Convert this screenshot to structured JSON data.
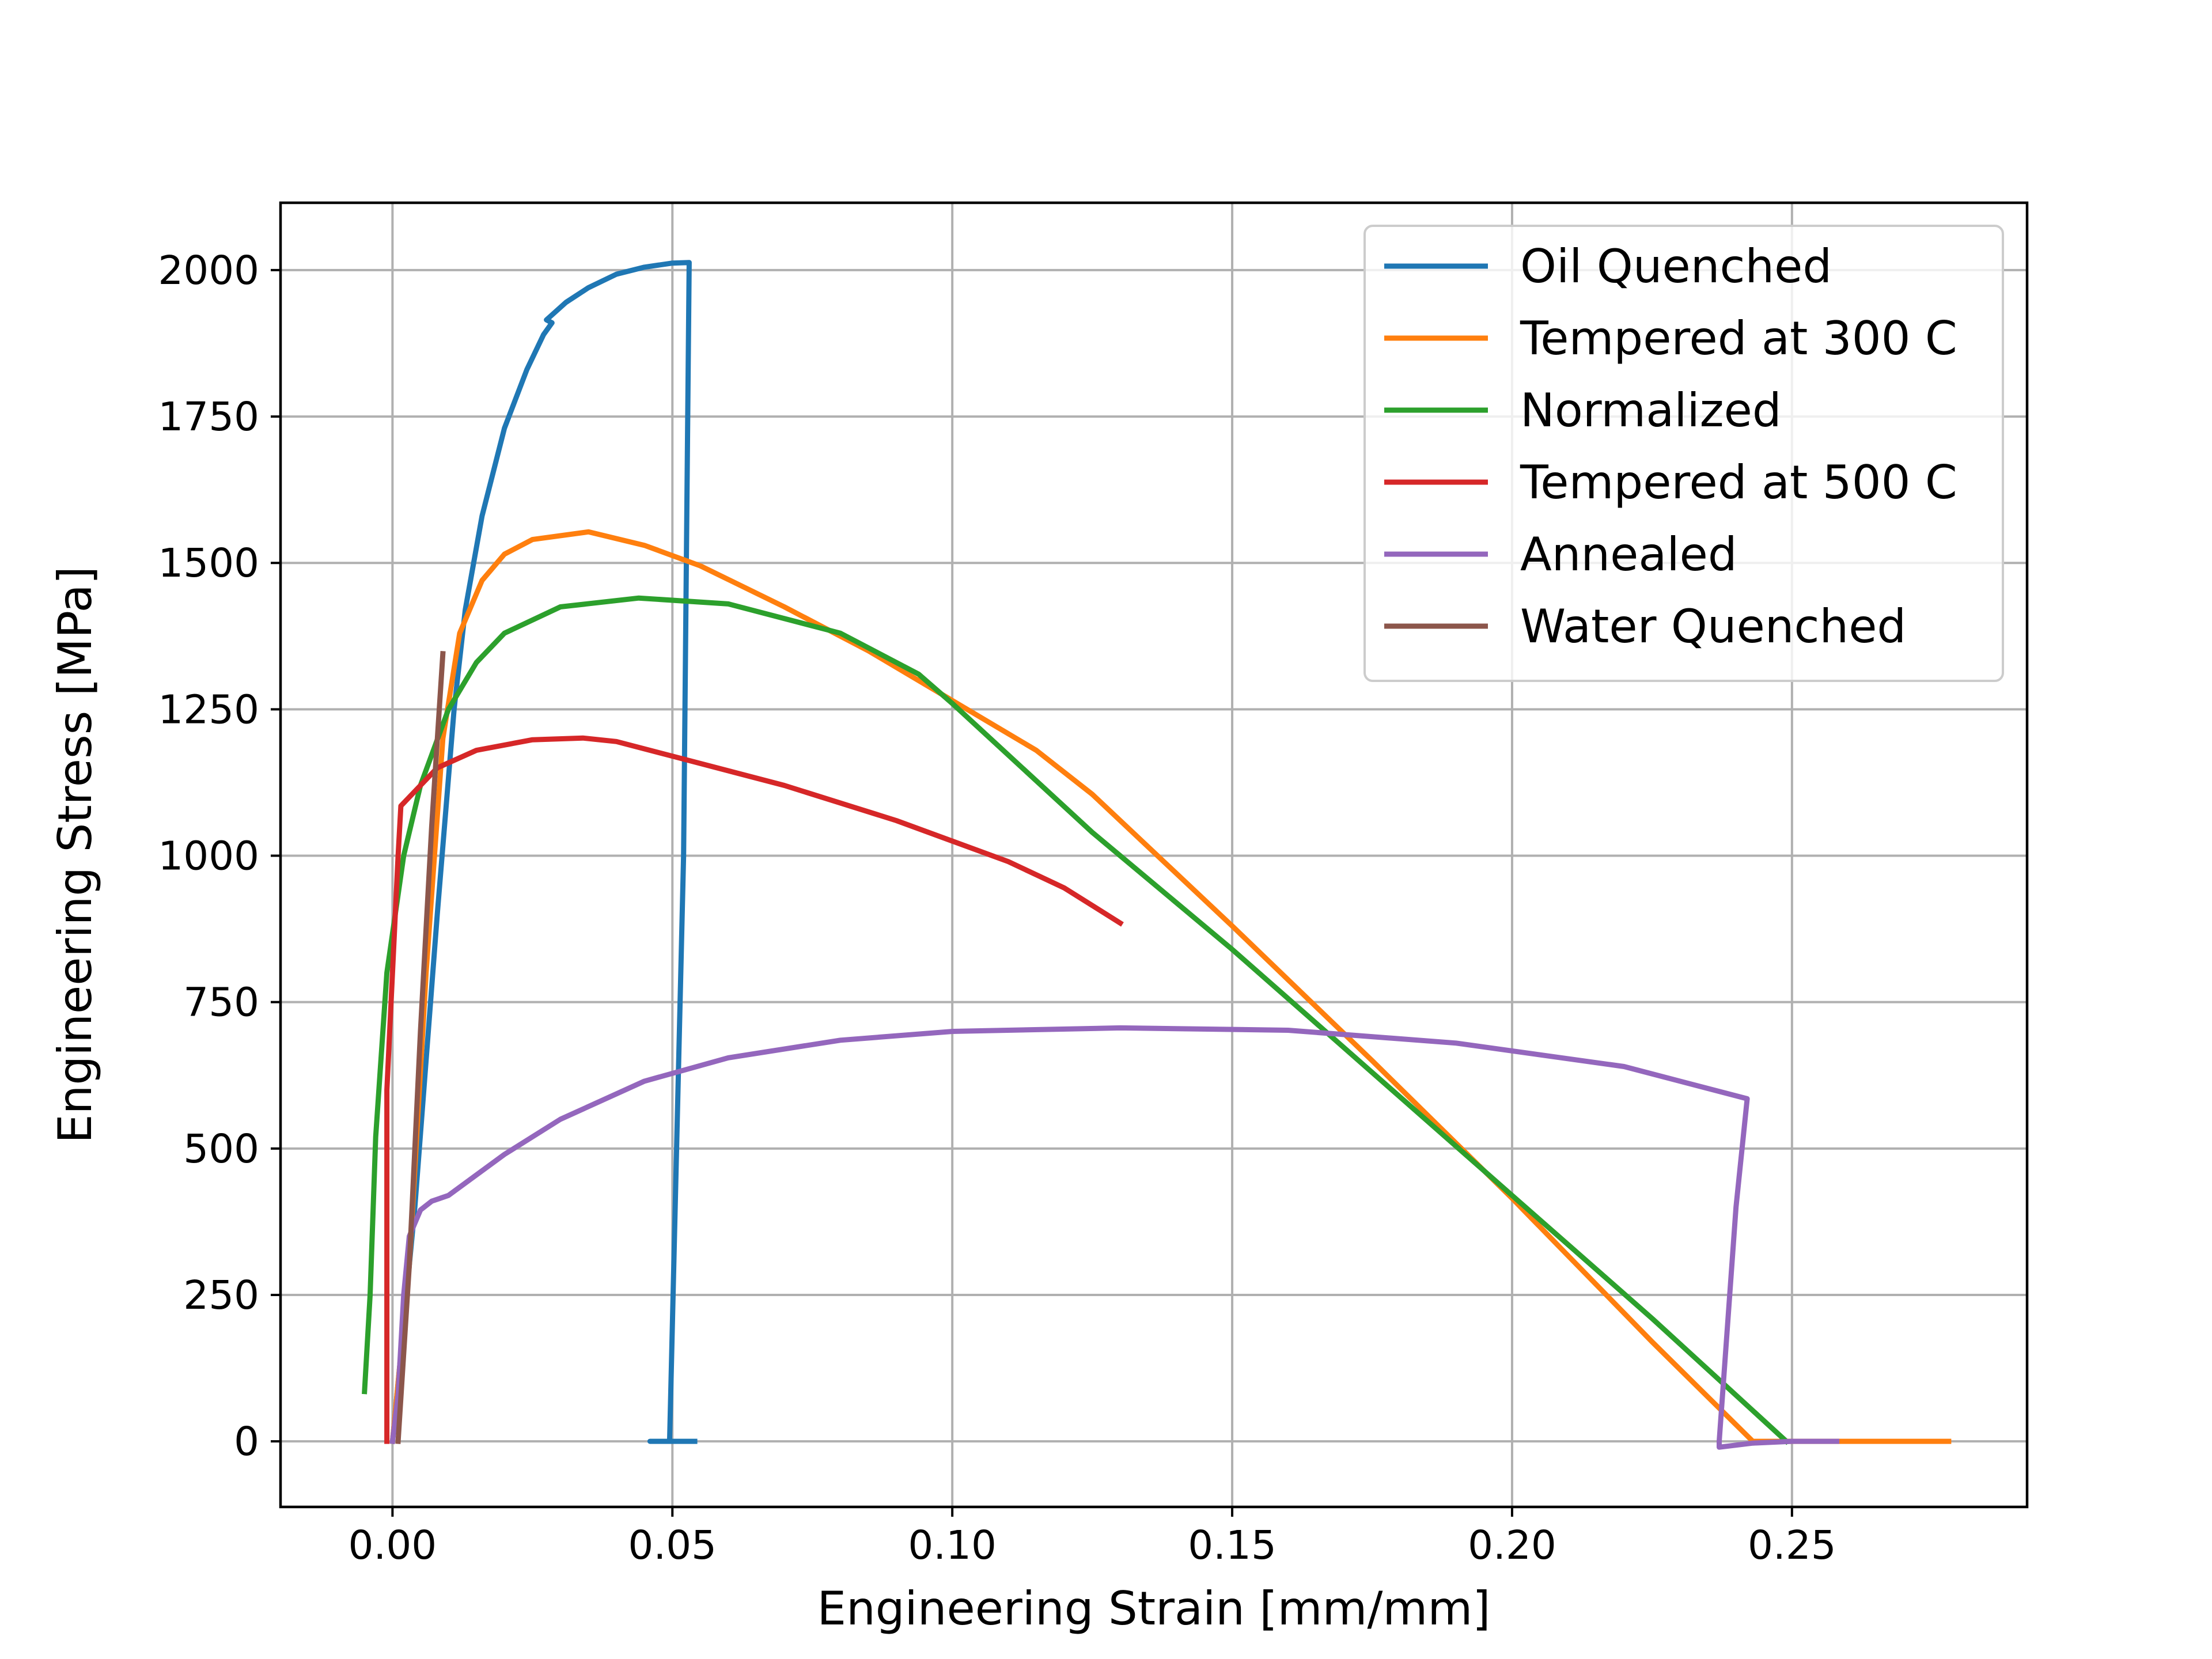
{
  "chart_data": {
    "type": "line",
    "title": "",
    "xlabel": "Engineering Strain   [mm/mm]",
    "ylabel": "Engineering Stress   [MPa]",
    "xlim": [
      -0.02,
      0.292
    ],
    "ylim": [
      -112,
      2115
    ],
    "grid": true,
    "legend_position": "top-right",
    "x_ticks": [
      {
        "value": 0.0,
        "label": "0.00"
      },
      {
        "value": 0.05,
        "label": "0.05"
      },
      {
        "value": 0.1,
        "label": "0.10"
      },
      {
        "value": 0.15,
        "label": "0.15"
      },
      {
        "value": 0.2,
        "label": "0.20"
      },
      {
        "value": 0.25,
        "label": "0.25"
      }
    ],
    "y_ticks": [
      {
        "value": 0,
        "label": "0"
      },
      {
        "value": 250,
        "label": "250"
      },
      {
        "value": 500,
        "label": "500"
      },
      {
        "value": 750,
        "label": "750"
      },
      {
        "value": 1000,
        "label": "1000"
      },
      {
        "value": 1250,
        "label": "1250"
      },
      {
        "value": 1500,
        "label": "1500"
      },
      {
        "value": 1750,
        "label": "1750"
      },
      {
        "value": 2000,
        "label": "2000"
      }
    ],
    "series": [
      {
        "name": "Oil Quenched",
        "color": "#1f77b4",
        "points": [
          [
            0.0,
            0
          ],
          [
            0.004,
            400
          ],
          [
            0.008,
            900
          ],
          [
            0.011,
            1250
          ],
          [
            0.013,
            1420
          ],
          [
            0.016,
            1580
          ],
          [
            0.02,
            1730
          ],
          [
            0.024,
            1830
          ],
          [
            0.027,
            1890
          ],
          [
            0.0285,
            1910
          ],
          [
            0.0275,
            1915
          ],
          [
            0.031,
            1945
          ],
          [
            0.035,
            1970
          ],
          [
            0.04,
            1993
          ],
          [
            0.045,
            2005
          ],
          [
            0.05,
            2012
          ],
          [
            0.053,
            2013
          ],
          [
            0.052,
            1000
          ],
          [
            0.0495,
            0
          ],
          [
            0.046,
            0
          ],
          [
            0.054,
            0
          ]
        ]
      },
      {
        "name": "Tempered at 300 C",
        "color": "#ff7f0e",
        "points": [
          [
            0.0,
            0
          ],
          [
            0.003,
            300
          ],
          [
            0.006,
            800
          ],
          [
            0.009,
            1200
          ],
          [
            0.012,
            1380
          ],
          [
            0.016,
            1470
          ],
          [
            0.02,
            1515
          ],
          [
            0.025,
            1540
          ],
          [
            0.035,
            1553
          ],
          [
            0.045,
            1530
          ],
          [
            0.055,
            1495
          ],
          [
            0.07,
            1425
          ],
          [
            0.085,
            1350
          ],
          [
            0.1,
            1265
          ],
          [
            0.115,
            1180
          ],
          [
            0.125,
            1105
          ],
          [
            0.15,
            880
          ],
          [
            0.175,
            650
          ],
          [
            0.2,
            415
          ],
          [
            0.225,
            170
          ],
          [
            0.243,
            0
          ],
          [
            0.26,
            0
          ],
          [
            0.278,
            0
          ]
        ]
      },
      {
        "name": "Normalized",
        "color": "#2ca02c",
        "points": [
          [
            -0.005,
            85
          ],
          [
            -0.004,
            250
          ],
          [
            -0.003,
            520
          ],
          [
            -0.001,
            800
          ],
          [
            0.002,
            1000
          ],
          [
            0.005,
            1120
          ],
          [
            0.01,
            1250
          ],
          [
            0.015,
            1330
          ],
          [
            0.02,
            1380
          ],
          [
            0.03,
            1425
          ],
          [
            0.044,
            1440
          ],
          [
            0.06,
            1430
          ],
          [
            0.08,
            1380
          ],
          [
            0.094,
            1310
          ],
          [
            0.1,
            1260
          ],
          [
            0.125,
            1040
          ],
          [
            0.15,
            840
          ],
          [
            0.175,
            630
          ],
          [
            0.2,
            420
          ],
          [
            0.225,
            210
          ],
          [
            0.249,
            0
          ]
        ]
      },
      {
        "name": "Tempered at 500 C",
        "color": "#d62728",
        "points": [
          [
            -0.001,
            0
          ],
          [
            -0.001,
            600
          ],
          [
            0.001,
            1000
          ],
          [
            0.0015,
            1085
          ],
          [
            0.004,
            1110
          ],
          [
            0.008,
            1150
          ],
          [
            0.015,
            1180
          ],
          [
            0.025,
            1198
          ],
          [
            0.034,
            1201
          ],
          [
            0.04,
            1195
          ],
          [
            0.05,
            1170
          ],
          [
            0.07,
            1120
          ],
          [
            0.09,
            1060
          ],
          [
            0.11,
            990
          ],
          [
            0.12,
            945
          ],
          [
            0.13,
            885
          ]
        ]
      },
      {
        "name": "Annealed",
        "color": "#9467bd",
        "points": [
          [
            0.0,
            0
          ],
          [
            0.001,
            80
          ],
          [
            0.002,
            250
          ],
          [
            0.003,
            350
          ],
          [
            0.005,
            395
          ],
          [
            0.007,
            410
          ],
          [
            0.01,
            420
          ],
          [
            0.02,
            490
          ],
          [
            0.03,
            550
          ],
          [
            0.045,
            615
          ],
          [
            0.06,
            655
          ],
          [
            0.08,
            685
          ],
          [
            0.1,
            700
          ],
          [
            0.13,
            706
          ],
          [
            0.16,
            702
          ],
          [
            0.19,
            680
          ],
          [
            0.22,
            640
          ],
          [
            0.242,
            585
          ],
          [
            0.24,
            400
          ],
          [
            0.237,
            0
          ],
          [
            0.237,
            -10
          ],
          [
            0.243,
            -3
          ],
          [
            0.25,
            0
          ],
          [
            0.258,
            0
          ]
        ]
      },
      {
        "name": "Water Quenched",
        "color": "#8c564b",
        "points": [
          [
            0.001,
            0
          ],
          [
            0.003,
            300
          ],
          [
            0.005,
            700
          ],
          [
            0.007,
            1050
          ],
          [
            0.009,
            1345
          ]
        ]
      }
    ]
  }
}
